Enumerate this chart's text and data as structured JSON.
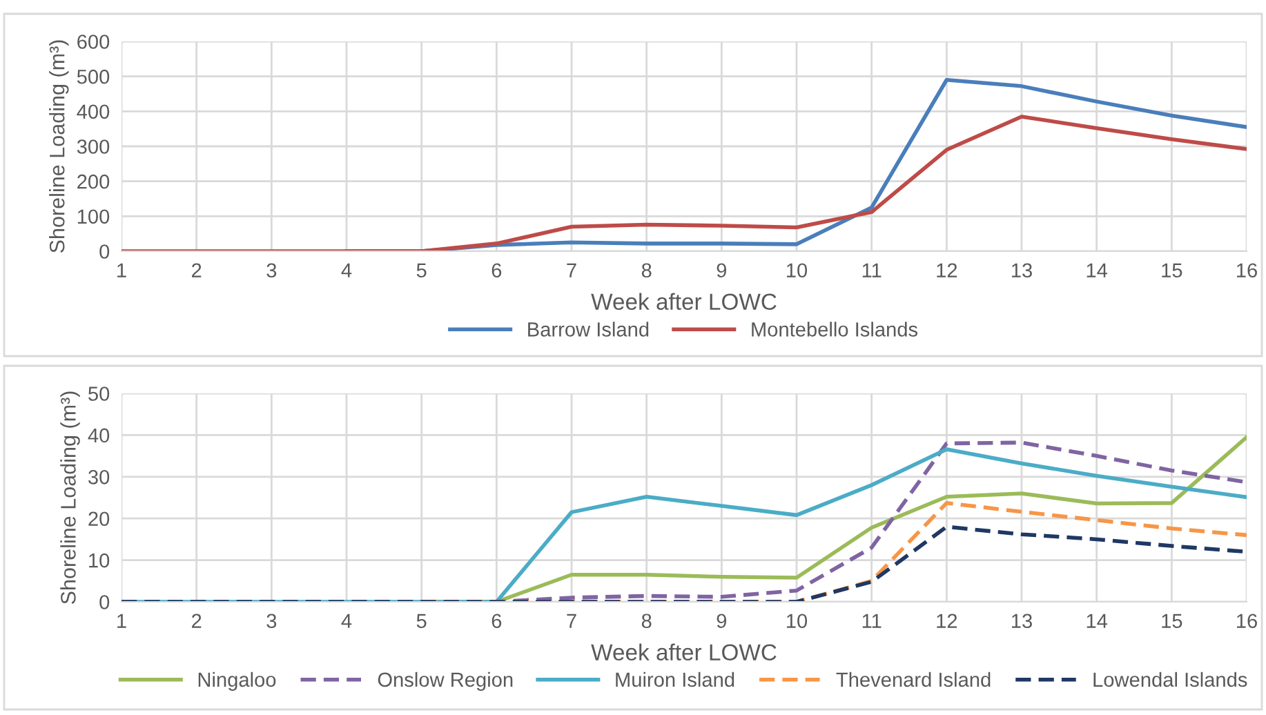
{
  "chart_data": [
    {
      "type": "line",
      "xlabel": "Week after LOWC",
      "ylabel": "Shoreline Loading (m³)",
      "x": [
        1,
        2,
        3,
        4,
        5,
        6,
        7,
        8,
        9,
        10,
        11,
        12,
        13,
        14,
        15,
        16
      ],
      "xlim": [
        1,
        16
      ],
      "xticks": [
        1,
        2,
        3,
        4,
        5,
        6,
        7,
        8,
        9,
        10,
        11,
        12,
        13,
        14,
        15,
        16
      ],
      "ylim": [
        0,
        600
      ],
      "yticks": [
        0,
        100,
        200,
        300,
        400,
        500,
        600
      ],
      "grid": true,
      "legend": "bottom",
      "marker": "none",
      "series": [
        {
          "name": "Barrow Island",
          "color": "#4a7ebb",
          "line_style": "solid",
          "values": [
            null,
            null,
            null,
            0,
            0,
            18,
            25,
            22,
            22,
            20,
            125,
            490,
            472,
            428,
            388,
            355
          ]
        },
        {
          "name": "Montebello Islands",
          "color": "#be4b48",
          "line_style": "solid",
          "values": [
            0,
            0,
            0,
            0,
            0,
            22,
            70,
            76,
            73,
            68,
            112,
            290,
            385,
            352,
            320,
            292
          ]
        }
      ]
    },
    {
      "type": "line",
      "xlabel": "Week after LOWC",
      "ylabel": "Shoreline Loading (m³)",
      "x": [
        1,
        2,
        3,
        4,
        5,
        6,
        7,
        8,
        9,
        10,
        11,
        12,
        13,
        14,
        15,
        16
      ],
      "xlim": [
        1,
        16
      ],
      "xticks": [
        1,
        2,
        3,
        4,
        5,
        6,
        7,
        8,
        9,
        10,
        11,
        12,
        13,
        14,
        15,
        16
      ],
      "ylim": [
        0,
        50
      ],
      "yticks": [
        0,
        10,
        20,
        30,
        40,
        50
      ],
      "grid": true,
      "legend": "bottom",
      "marker": "none",
      "series": [
        {
          "name": "Ningaloo",
          "color": "#9bbb59",
          "line_style": "solid",
          "values": [
            null,
            null,
            null,
            null,
            0,
            0,
            6.5,
            6.5,
            6,
            5.8,
            17.8,
            25.2,
            26,
            23.6,
            23.7,
            39.5
          ]
        },
        {
          "name": "Onslow Region",
          "color": "#8064a2",
          "line_style": "dashed",
          "values": [
            null,
            null,
            null,
            null,
            0,
            0,
            1,
            1.4,
            1.2,
            2.7,
            13,
            38,
            38.2,
            35,
            31.5,
            28.7
          ]
        },
        {
          "name": "Muiron Island",
          "color": "#4bacc6",
          "line_style": "solid",
          "values": [
            0,
            0,
            0,
            0,
            0,
            0,
            21.5,
            25.2,
            23,
            20.8,
            28,
            36.6,
            33.2,
            30.2,
            27.6,
            25.1
          ]
        },
        {
          "name": "Thevenard Island",
          "color": "#f79646",
          "line_style": "dashed",
          "values": [
            null,
            null,
            null,
            null,
            0,
            0,
            0,
            0,
            0,
            0,
            5,
            23.7,
            21.6,
            19.6,
            17.6,
            16
          ]
        },
        {
          "name": "Lowendal Islands",
          "color": "#1f3864",
          "line_style": "dashed",
          "values": [
            0,
            0,
            0,
            0,
            0,
            0,
            0,
            0,
            0,
            0,
            4.8,
            18,
            16.2,
            15,
            13.4,
            12
          ]
        }
      ]
    }
  ]
}
